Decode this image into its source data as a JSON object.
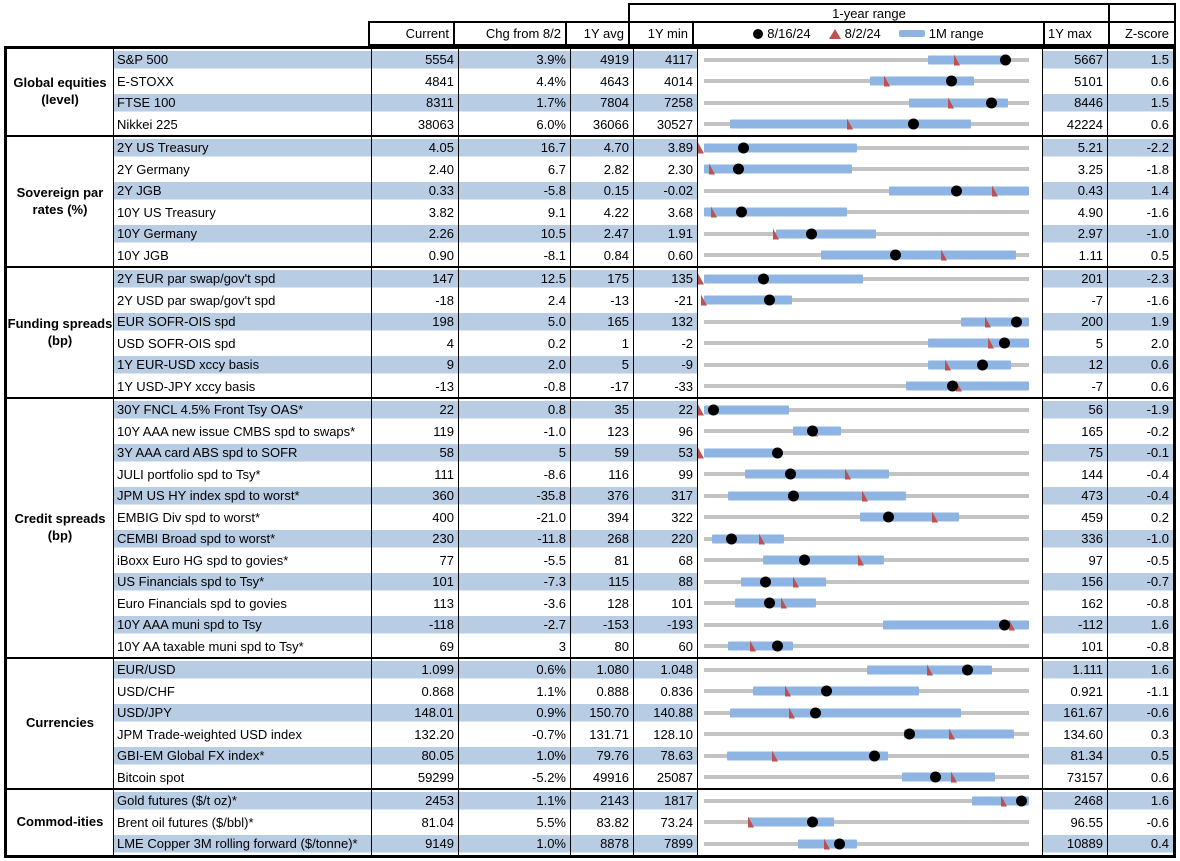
{
  "chart_data": {
    "type": "table",
    "title": "1-year range",
    "columns": {
      "current": "Current",
      "chg": "Chg from 8/2",
      "avg": "1Y avg",
      "min": "1Y min",
      "max": "1Y max",
      "z": "Z-score"
    },
    "legend": {
      "dot": "8/16/24",
      "tri": "8/2/24",
      "bar": "1M range"
    },
    "colors": {
      "band": "#b8cce4",
      "bar": "#8db4e2",
      "track": "#c3c3c3",
      "tri": "#c0504d",
      "dot": "#000000"
    },
    "groups": [
      {
        "label": "Global equities\n(level)",
        "rows": [
          {
            "name": "S&P 500",
            "current": "5554",
            "chg": "3.9%",
            "avg": "4919",
            "min": "4117",
            "max": "5667",
            "z": "1.5",
            "chart": {
              "bar": [
                0.69,
                0.92
              ],
              "dot": 0.927,
              "tri": 0.79
            }
          },
          {
            "name": "E-STOXX",
            "current": "4841",
            "chg": "4.4%",
            "avg": "4643",
            "min": "4014",
            "max": "5101",
            "z": "0.6",
            "chart": {
              "bar": [
                0.51,
                0.83
              ],
              "dot": 0.761,
              "tri": 0.573
            }
          },
          {
            "name": "FTSE 100",
            "current": "8311",
            "chg": "1.7%",
            "avg": "7804",
            "min": "7258",
            "max": "8446",
            "z": "1.5",
            "chart": {
              "bar": [
                0.63,
                0.935
              ],
              "dot": 0.886,
              "tri": 0.77
            }
          },
          {
            "name": "Nikkei 225",
            "current": "38063",
            "chg": "6.0%",
            "avg": "36066",
            "min": "30527",
            "max": "42224",
            "z": "0.6",
            "chart": {
              "bar": [
                0.08,
                0.82
              ],
              "dot": 0.644,
              "tri": 0.46
            }
          }
        ]
      },
      {
        "label": "Sovereign par\nrates (%)",
        "rows": [
          {
            "name": "2Y US Treasury",
            "current": "4.05",
            "chg": "16.7",
            "avg": "4.70",
            "min": "3.89",
            "max": "5.21",
            "z": "-2.2",
            "chart": {
              "bar": [
                0,
                0.47
              ],
              "dot": 0.121,
              "tri": 0.0
            }
          },
          {
            "name": "2Y Germany",
            "current": "2.40",
            "chg": "6.7",
            "avg": "2.82",
            "min": "2.30",
            "max": "3.25",
            "z": "-1.8",
            "chart": {
              "bar": [
                0,
                0.455
              ],
              "dot": 0.105,
              "tri": 0.035
            }
          },
          {
            "name": "2Y JGB",
            "current": "0.33",
            "chg": "-5.8",
            "avg": "0.15",
            "min": "-0.02",
            "max": "0.43",
            "z": "1.4",
            "chart": {
              "bar": [
                0.57,
                1.0
              ],
              "dot": 0.778,
              "tri": 0.905
            }
          },
          {
            "name": "10Y US Treasury",
            "current": "3.82",
            "chg": "9.1",
            "avg": "4.22",
            "min": "3.68",
            "max": "4.90",
            "z": "-1.6",
            "chart": {
              "bar": [
                0,
                0.44
              ],
              "dot": 0.115,
              "tri": 0.04
            }
          },
          {
            "name": "10Y Germany",
            "current": "2.26",
            "chg": "10.5",
            "avg": "2.47",
            "min": "1.91",
            "max": "2.97",
            "z": "-1.0",
            "chart": {
              "bar": [
                0.22,
                0.53
              ],
              "dot": 0.33,
              "tri": 0.231
            }
          },
          {
            "name": "10Y JGB",
            "current": "0.90",
            "chg": "-8.1",
            "avg": "0.84",
            "min": "0.60",
            "max": "1.11",
            "z": "0.5",
            "chart": {
              "bar": [
                0.36,
                0.96
              ],
              "dot": 0.59,
              "tri": 0.748
            }
          }
        ]
      },
      {
        "label": "Funding spreads\n(bp)",
        "rows": [
          {
            "name": "2Y EUR par swap/gov't spd",
            "current": "147",
            "chg": "12.5",
            "avg": "175",
            "min": "135",
            "max": "201",
            "z": "-2.3",
            "chart": {
              "bar": [
                0,
                0.49
              ],
              "dot": 0.182,
              "tri": 0.0
            }
          },
          {
            "name": "2Y USD par swap/gov't spd",
            "current": "-18",
            "chg": "2.4",
            "avg": "-13",
            "min": "-21",
            "max": "-7",
            "z": "-1.6",
            "chart": {
              "bar": [
                0,
                0.27
              ],
              "dot": 0.2,
              "tri": 0.01
            }
          },
          {
            "name": "EUR SOFR-OIS spd",
            "current": "198",
            "chg": "5.0",
            "avg": "165",
            "min": "132",
            "max": "200",
            "z": "1.9",
            "chart": {
              "bar": [
                0.79,
                1.0
              ],
              "dot": 0.96,
              "tri": 0.885
            }
          },
          {
            "name": "USD SOFR-OIS spd",
            "current": "4",
            "chg": "0.2",
            "avg": "1",
            "min": "-2",
            "max": "5",
            "z": "2.0",
            "chart": {
              "bar": [
                0.69,
                1.0
              ],
              "dot": 0.925,
              "tri": 0.895
            }
          },
          {
            "name": "1Y EUR-USD xccy basis",
            "current": "9",
            "chg": "2.0",
            "avg": "5",
            "min": "-9",
            "max": "12",
            "z": "0.6",
            "chart": {
              "bar": [
                0.69,
                0.945
              ],
              "dot": 0.857,
              "tri": 0.762
            }
          },
          {
            "name": "1Y USD-JPY xccy basis",
            "current": "-13",
            "chg": "-0.8",
            "avg": "-17",
            "min": "-33",
            "max": "-7",
            "z": "0.6",
            "chart": {
              "bar": [
                0.62,
                1.0
              ],
              "dot": 0.765,
              "tri": 0.795
            }
          }
        ]
      },
      {
        "label": "Credit spreads\n(bp)",
        "rows": [
          {
            "name": "30Y FNCL 4.5% Front Tsy OAS*",
            "current": "22",
            "chg": "0.8",
            "avg": "35",
            "min": "22",
            "max": "56",
            "z": "-1.9",
            "chart": {
              "bar": [
                0,
                0.26
              ],
              "dot": 0.028,
              "tri": 0.003
            }
          },
          {
            "name": "10Y AAA new issue CMBS spd to swaps*",
            "current": "119",
            "chg": "-1.0",
            "avg": "123",
            "min": "96",
            "max": "165",
            "z": "-0.2",
            "chart": {
              "bar": [
                0.275,
                0.42
              ],
              "dot": 0.333,
              "tri": 0.352
            }
          },
          {
            "name": "3Y AAA card ABS spd to SOFR",
            "current": "58",
            "chg": "5",
            "avg": "59",
            "min": "53",
            "max": "75",
            "z": "-0.1",
            "chart": {
              "bar": [
                0,
                0.225
              ],
              "dot": 0.227,
              "tri": 0.003
            }
          },
          {
            "name": "JULI portfolio spd to Tsy*",
            "current": "111",
            "chg": "-8.6",
            "avg": "116",
            "min": "99",
            "max": "144",
            "z": "-0.4",
            "chart": {
              "bar": [
                0.125,
                0.57
              ],
              "dot": 0.267,
              "tri": 0.455
            }
          },
          {
            "name": "JPM US HY index spd to worst*",
            "current": "360",
            "chg": "-35.8",
            "avg": "376",
            "min": "317",
            "max": "473",
            "z": "-0.4",
            "chart": {
              "bar": [
                0.075,
                0.62
              ],
              "dot": 0.276,
              "tri": 0.507
            }
          },
          {
            "name": "EMBIG Div spd to worst*",
            "current": "400",
            "chg": "-21.0",
            "avg": "394",
            "min": "322",
            "max": "459",
            "z": "0.2",
            "chart": {
              "bar": [
                0.48,
                0.785
              ],
              "dot": 0.569,
              "tri": 0.722
            }
          },
          {
            "name": "CEMBI Broad spd to worst*",
            "current": "230",
            "chg": "-11.8",
            "avg": "268",
            "min": "220",
            "max": "336",
            "z": "-1.0",
            "chart": {
              "bar": [
                0.025,
                0.245
              ],
              "dot": 0.086,
              "tri": 0.188
            }
          },
          {
            "name": "iBoxx Euro HG spd to govies*",
            "current": "77",
            "chg": "-5.5",
            "avg": "81",
            "min": "68",
            "max": "97",
            "z": "-0.5",
            "chart": {
              "bar": [
                0.18,
                0.555
              ],
              "dot": 0.31,
              "tri": 0.495
            }
          },
          {
            "name": "US Financials spd to Tsy*",
            "current": "101",
            "chg": "-7.3",
            "avg": "115",
            "min": "88",
            "max": "156",
            "z": "-0.7",
            "chart": {
              "bar": [
                0.115,
                0.375
              ],
              "dot": 0.19,
              "tri": 0.295
            }
          },
          {
            "name": "Euro Financials spd to govies",
            "current": "113",
            "chg": "-3.6",
            "avg": "128",
            "min": "101",
            "max": "162",
            "z": "-0.8",
            "chart": {
              "bar": [
                0.095,
                0.345
              ],
              "dot": 0.2,
              "tri": 0.257
            }
          },
          {
            "name": "10Y AAA muni spd to Tsy",
            "current": "-118",
            "chg": "-2.7",
            "avg": "-153",
            "min": "-193",
            "max": "-112",
            "z": "1.6",
            "chart": {
              "bar": [
                0.55,
                1.0
              ],
              "dot": 0.926,
              "tri": 0.958
            }
          },
          {
            "name": "10Y AA taxable muni spd to Tsy*",
            "current": "69",
            "chg": "3",
            "avg": "80",
            "min": "60",
            "max": "101",
            "z": "-0.8",
            "chart": {
              "bar": [
                0.075,
                0.275
              ],
              "dot": 0.225,
              "tri": 0.16
            }
          }
        ]
      },
      {
        "label": "Currencies",
        "rows": [
          {
            "name": "EUR/USD",
            "current": "1.099",
            "chg": "0.6%",
            "avg": "1.080",
            "min": "1.048",
            "max": "1.111",
            "z": "1.6",
            "chart": {
              "bar": [
                0.5,
                0.885
              ],
              "dot": 0.81,
              "tri": 0.707
            }
          },
          {
            "name": "USD/CHF",
            "current": "0.868",
            "chg": "1.1%",
            "avg": "0.888",
            "min": "0.836",
            "max": "0.921",
            "z": "-1.1",
            "chart": {
              "bar": [
                0.15,
                0.66
              ],
              "dot": 0.378,
              "tri": 0.268
            }
          },
          {
            "name": "USD/JPY",
            "current": "148.01",
            "chg": "0.9%",
            "avg": "150.70",
            "min": "140.88",
            "max": "161.67",
            "z": "-0.6",
            "chart": {
              "bar": [
                0.08,
                0.79
              ],
              "dot": 0.344,
              "tri": 0.28
            }
          },
          {
            "name": "JPM Trade-weighted USD index",
            "current": "132.20",
            "chg": "-0.7%",
            "avg": "131.71",
            "min": "128.10",
            "max": "134.60",
            "z": "0.3",
            "chart": {
              "bar": [
                0.615,
                0.955
              ],
              "dot": 0.632,
              "tri": 0.773
            }
          },
          {
            "name": "GBI-EM Global FX index*",
            "current": "80.05",
            "chg": "1.0%",
            "avg": "79.76",
            "min": "78.63",
            "max": "81.34",
            "z": "0.5",
            "chart": {
              "bar": [
                0.07,
                0.565
              ],
              "dot": 0.525,
              "tri": 0.23
            }
          },
          {
            "name": "Bitcoin spot",
            "current": "59299",
            "chg": "-5.2%",
            "avg": "49916",
            "min": "25087",
            "max": "73157",
            "z": "0.6",
            "chart": {
              "bar": [
                0.61,
                0.895
              ],
              "dot": 0.713,
              "tri": 0.78
            }
          }
        ]
      },
      {
        "label": "Commod-ities",
        "rows": [
          {
            "name": "Gold futures ($/t oz)*",
            "current": "2453",
            "chg": "1.1%",
            "avg": "2143",
            "min": "1817",
            "max": "2468",
            "z": "1.6",
            "chart": {
              "bar": [
                0.825,
                1.0
              ],
              "dot": 0.976,
              "tri": 0.935
            }
          },
          {
            "name": "Brent oil futures ($/bbl)*",
            "current": "81.04",
            "chg": "5.5%",
            "avg": "83.82",
            "min": "73.24",
            "max": "96.55",
            "z": "-0.6",
            "chart": {
              "bar": [
                0.135,
                0.4
              ],
              "dot": 0.335,
              "tri": 0.155
            }
          },
          {
            "name": "LME Copper 3M rolling forward ($/tonne)*",
            "current": "9149",
            "chg": "1.0%",
            "avg": "8878",
            "min": "7899",
            "max": "10889",
            "z": "0.4",
            "chart": {
              "bar": [
                0.29,
                0.47
              ],
              "dot": 0.418,
              "tri": 0.388
            }
          }
        ]
      }
    ]
  }
}
